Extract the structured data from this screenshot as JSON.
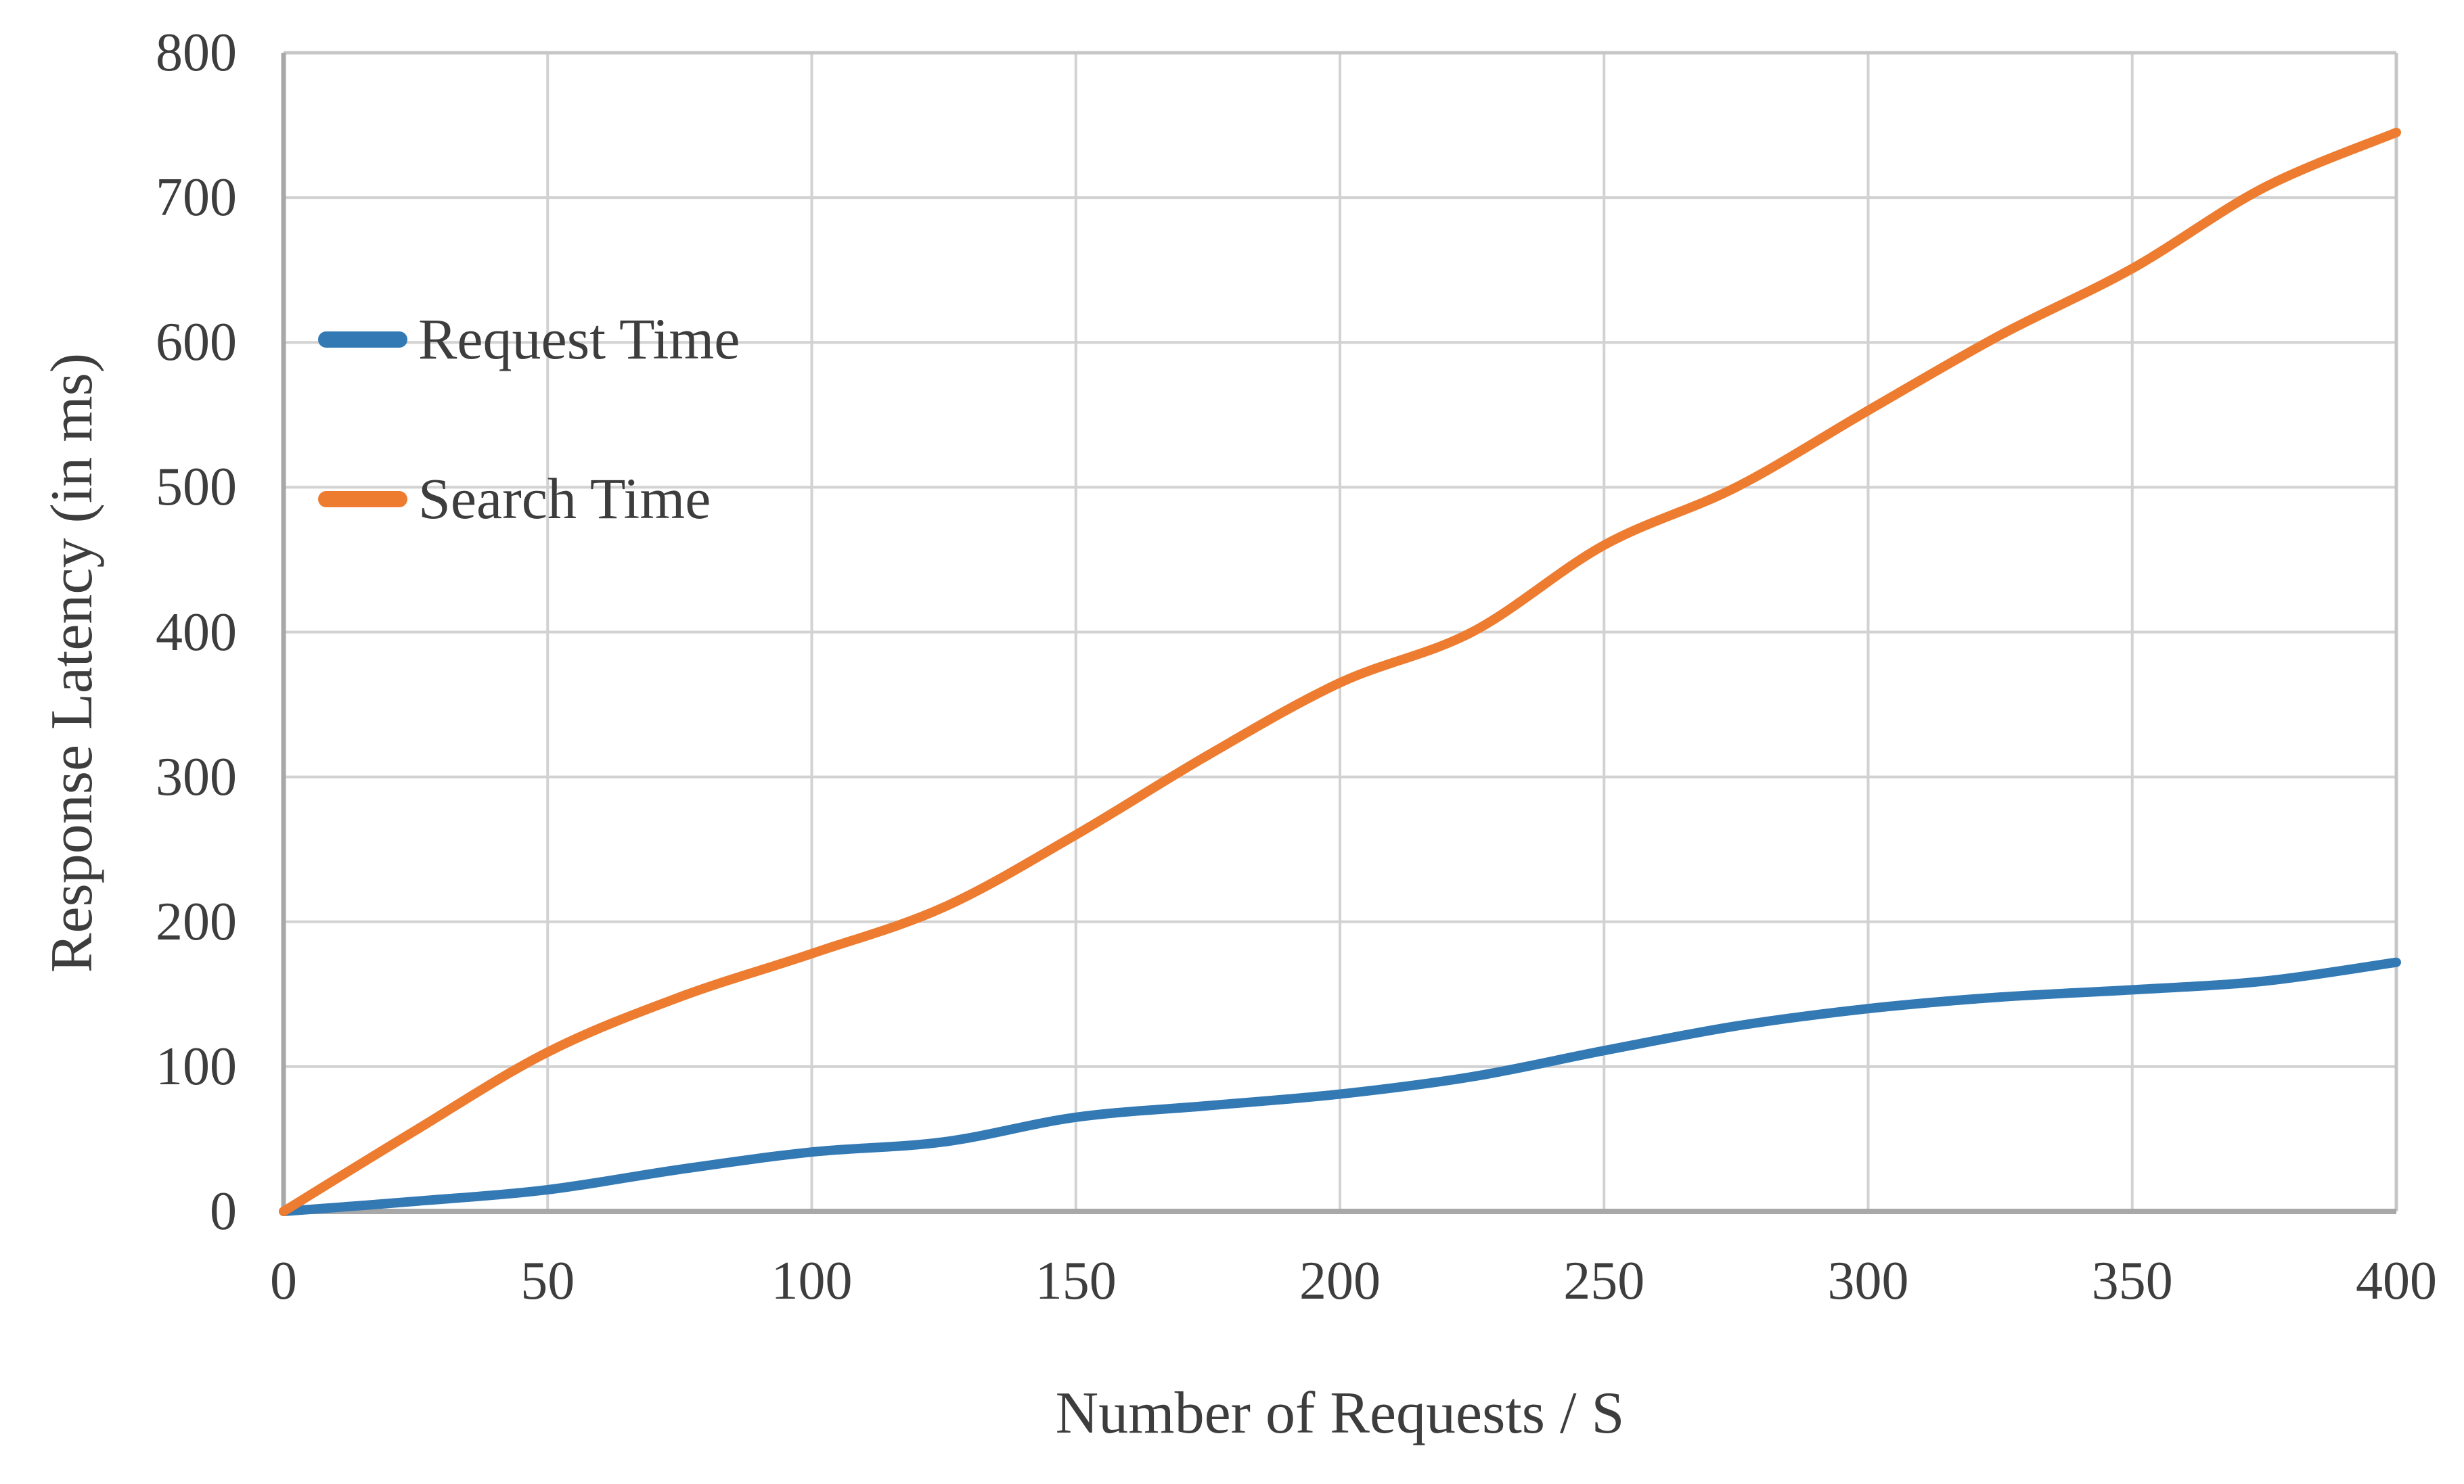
{
  "figure": {
    "background": "#ffffff",
    "text_color": "#3d3d3d",
    "gridline_color": "#d2d2d2",
    "plot_border_color": "#c6c6c6",
    "axis_line_color": "#a8a8a8"
  },
  "legend": {
    "items": [
      {
        "label": "Request Time",
        "color": "#3379b4"
      },
      {
        "label": "Search Time",
        "color": "#ed7c30"
      }
    ]
  },
  "chart_data": {
    "type": "line",
    "title": "",
    "xlabel": "Number of Requests / S",
    "ylabel": "Response Latency (in ms)",
    "xlim": [
      0,
      400
    ],
    "ylim": [
      0,
      800
    ],
    "x_ticks": [
      0,
      50,
      100,
      150,
      200,
      250,
      300,
      350,
      400
    ],
    "y_ticks": [
      0,
      100,
      200,
      300,
      400,
      500,
      600,
      700,
      800
    ],
    "grid": true,
    "legend_position": "inside-top-left",
    "line_smoothing": true,
    "x": [
      0,
      25,
      50,
      75,
      100,
      125,
      150,
      175,
      200,
      225,
      250,
      275,
      300,
      325,
      350,
      375,
      400
    ],
    "series": [
      {
        "name": "Request Time",
        "color": "#3379b4",
        "values": [
          0,
          7,
          15,
          29,
          41,
          48,
          65,
          73,
          81,
          93,
          111,
          128,
          140,
          148,
          153,
          159,
          172
        ]
      },
      {
        "name": "Search Time",
        "color": "#ed7c30",
        "values": [
          0,
          56,
          110,
          148,
          178,
          210,
          260,
          315,
          365,
          400,
          460,
          500,
          553,
          605,
          651,
          707,
          745
        ]
      }
    ]
  }
}
